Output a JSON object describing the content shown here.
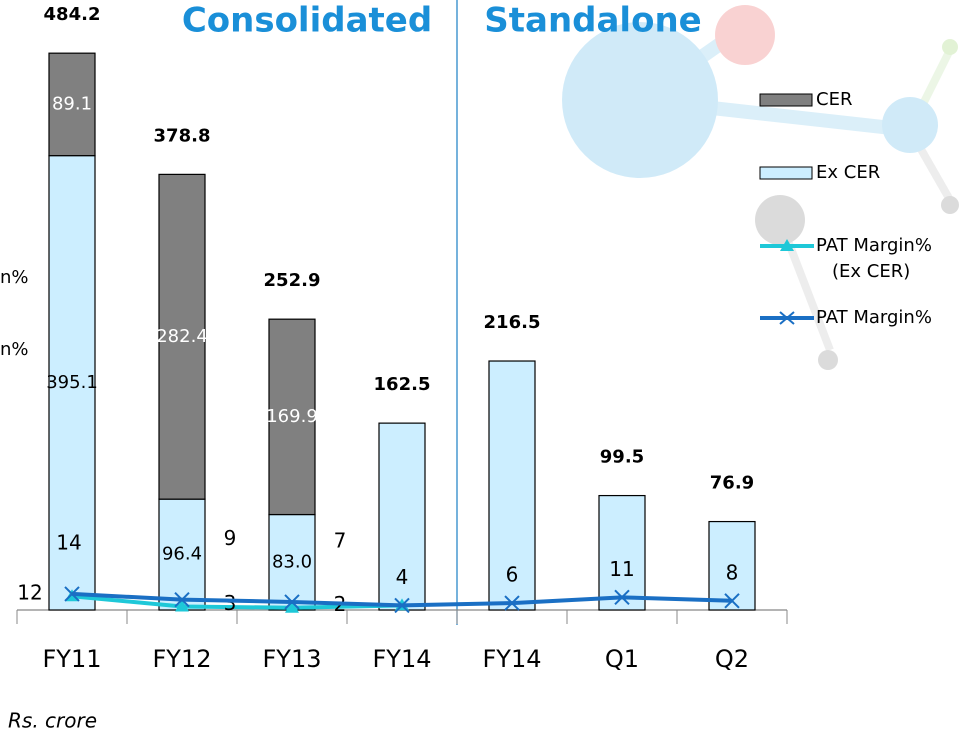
{
  "chart_data": {
    "type": "bar",
    "titles": [
      "Consolidated",
      "Standalone"
    ],
    "categories": [
      "FY11",
      "FY12",
      "FY13",
      "FY14",
      "FY14",
      "Q1",
      "Q2"
    ],
    "series": [
      {
        "name": "Ex CER",
        "color": "#cceeff",
        "values": [
          395.1,
          96.4,
          83.0,
          162.5,
          216.5,
          99.5,
          76.9
        ],
        "value_labels": [
          "395.1",
          "96.4",
          "83.0",
          null,
          null,
          null,
          null
        ]
      },
      {
        "name": "CER",
        "color": "#808080",
        "values": [
          89.1,
          282.4,
          169.9,
          null,
          null,
          null,
          null
        ]
      },
      {
        "name": "PAT Margin%\n(Ex CER)",
        "type": "line",
        "axis": "y2",
        "color": "#1ec8d8",
        "values": [
          12,
          3,
          2,
          4,
          null,
          null,
          null
        ],
        "value_labels": [
          "12",
          "3",
          "2",
          null,
          null,
          null,
          null
        ]
      },
      {
        "name": "PAT Margin%",
        "type": "line",
        "axis": "y2",
        "color": "#1a6fc4",
        "values": [
          14,
          9,
          7,
          4,
          6,
          11,
          8
        ]
      }
    ],
    "totals": [
      484.2,
      378.8,
      252.9,
      162.5,
      216.5,
      99.5,
      76.9
    ],
    "ylim": [
      0,
      500
    ],
    "y2lim": [
      0,
      500
    ],
    "side_fragments": [
      "n%",
      "n%"
    ],
    "note": "Rs. crore"
  }
}
